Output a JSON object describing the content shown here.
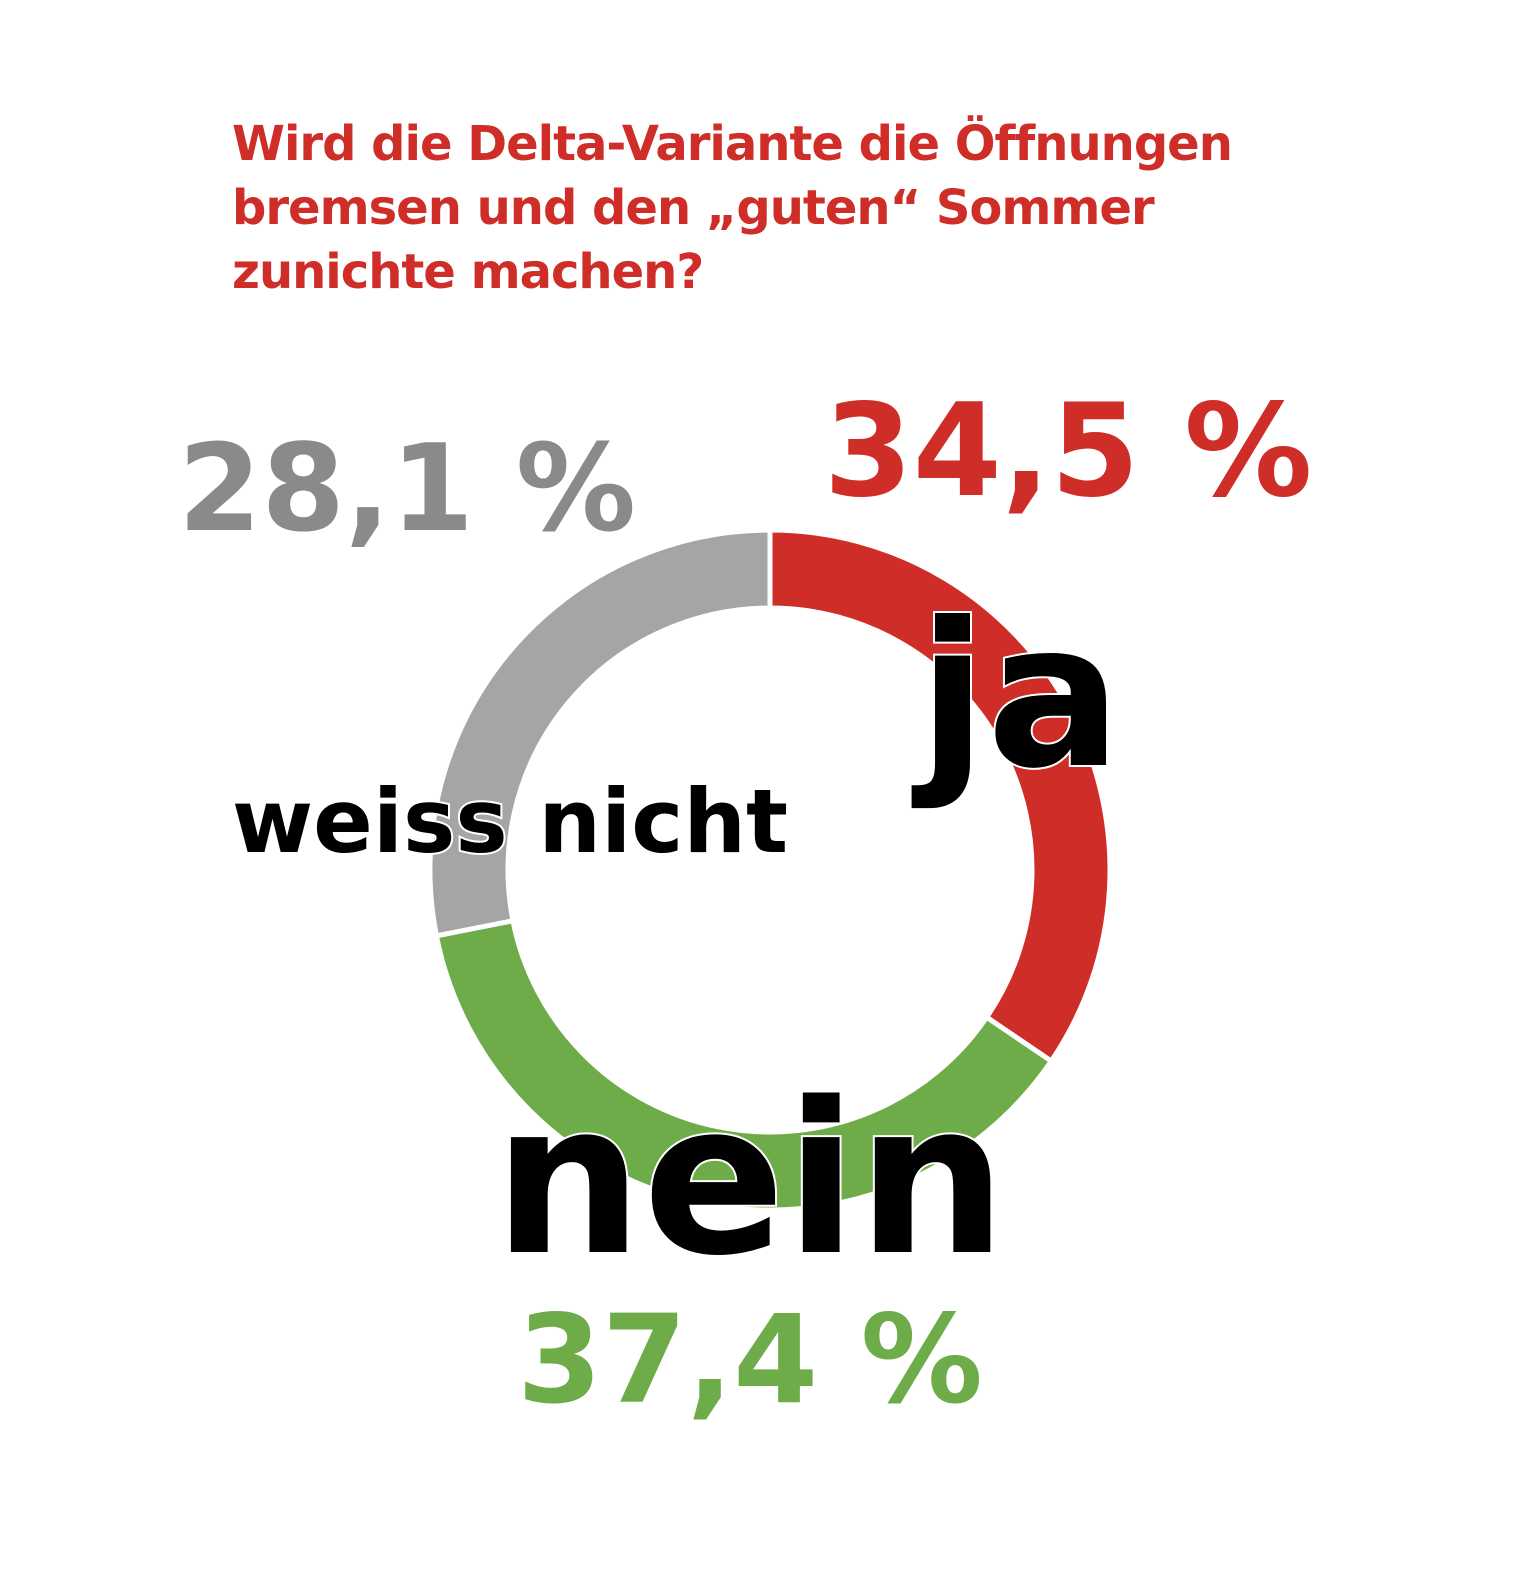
{
  "chart_data": {
    "type": "pie",
    "title": "Wird die Delta-Variante die Öffnungen bremsen und den „guten“ Sommer zunichte machen?",
    "title_lines": [
      "Wird die Delta-Variante die Öffnungen",
      "bremsen und den „guten“ Sommer",
      "zunichte machen?"
    ],
    "title_color": "#cf2d27",
    "style": "donut",
    "slices": [
      {
        "label": "ja",
        "value": 34.5,
        "display": "34,5 %",
        "color": "#cf2d27"
      },
      {
        "label": "nein",
        "value": 37.4,
        "display": "37,4 %",
        "color": "#6dac48"
      },
      {
        "label": "weiss nicht",
        "value": 28.1,
        "display": "28,1 %",
        "color": "#a5a5a5"
      }
    ],
    "value_label_colors": [
      "#cf2d27",
      "#6dac48",
      "#8a8a8a"
    ],
    "category_label_color": "#000000",
    "start": "top",
    "direction": "clockwise"
  }
}
